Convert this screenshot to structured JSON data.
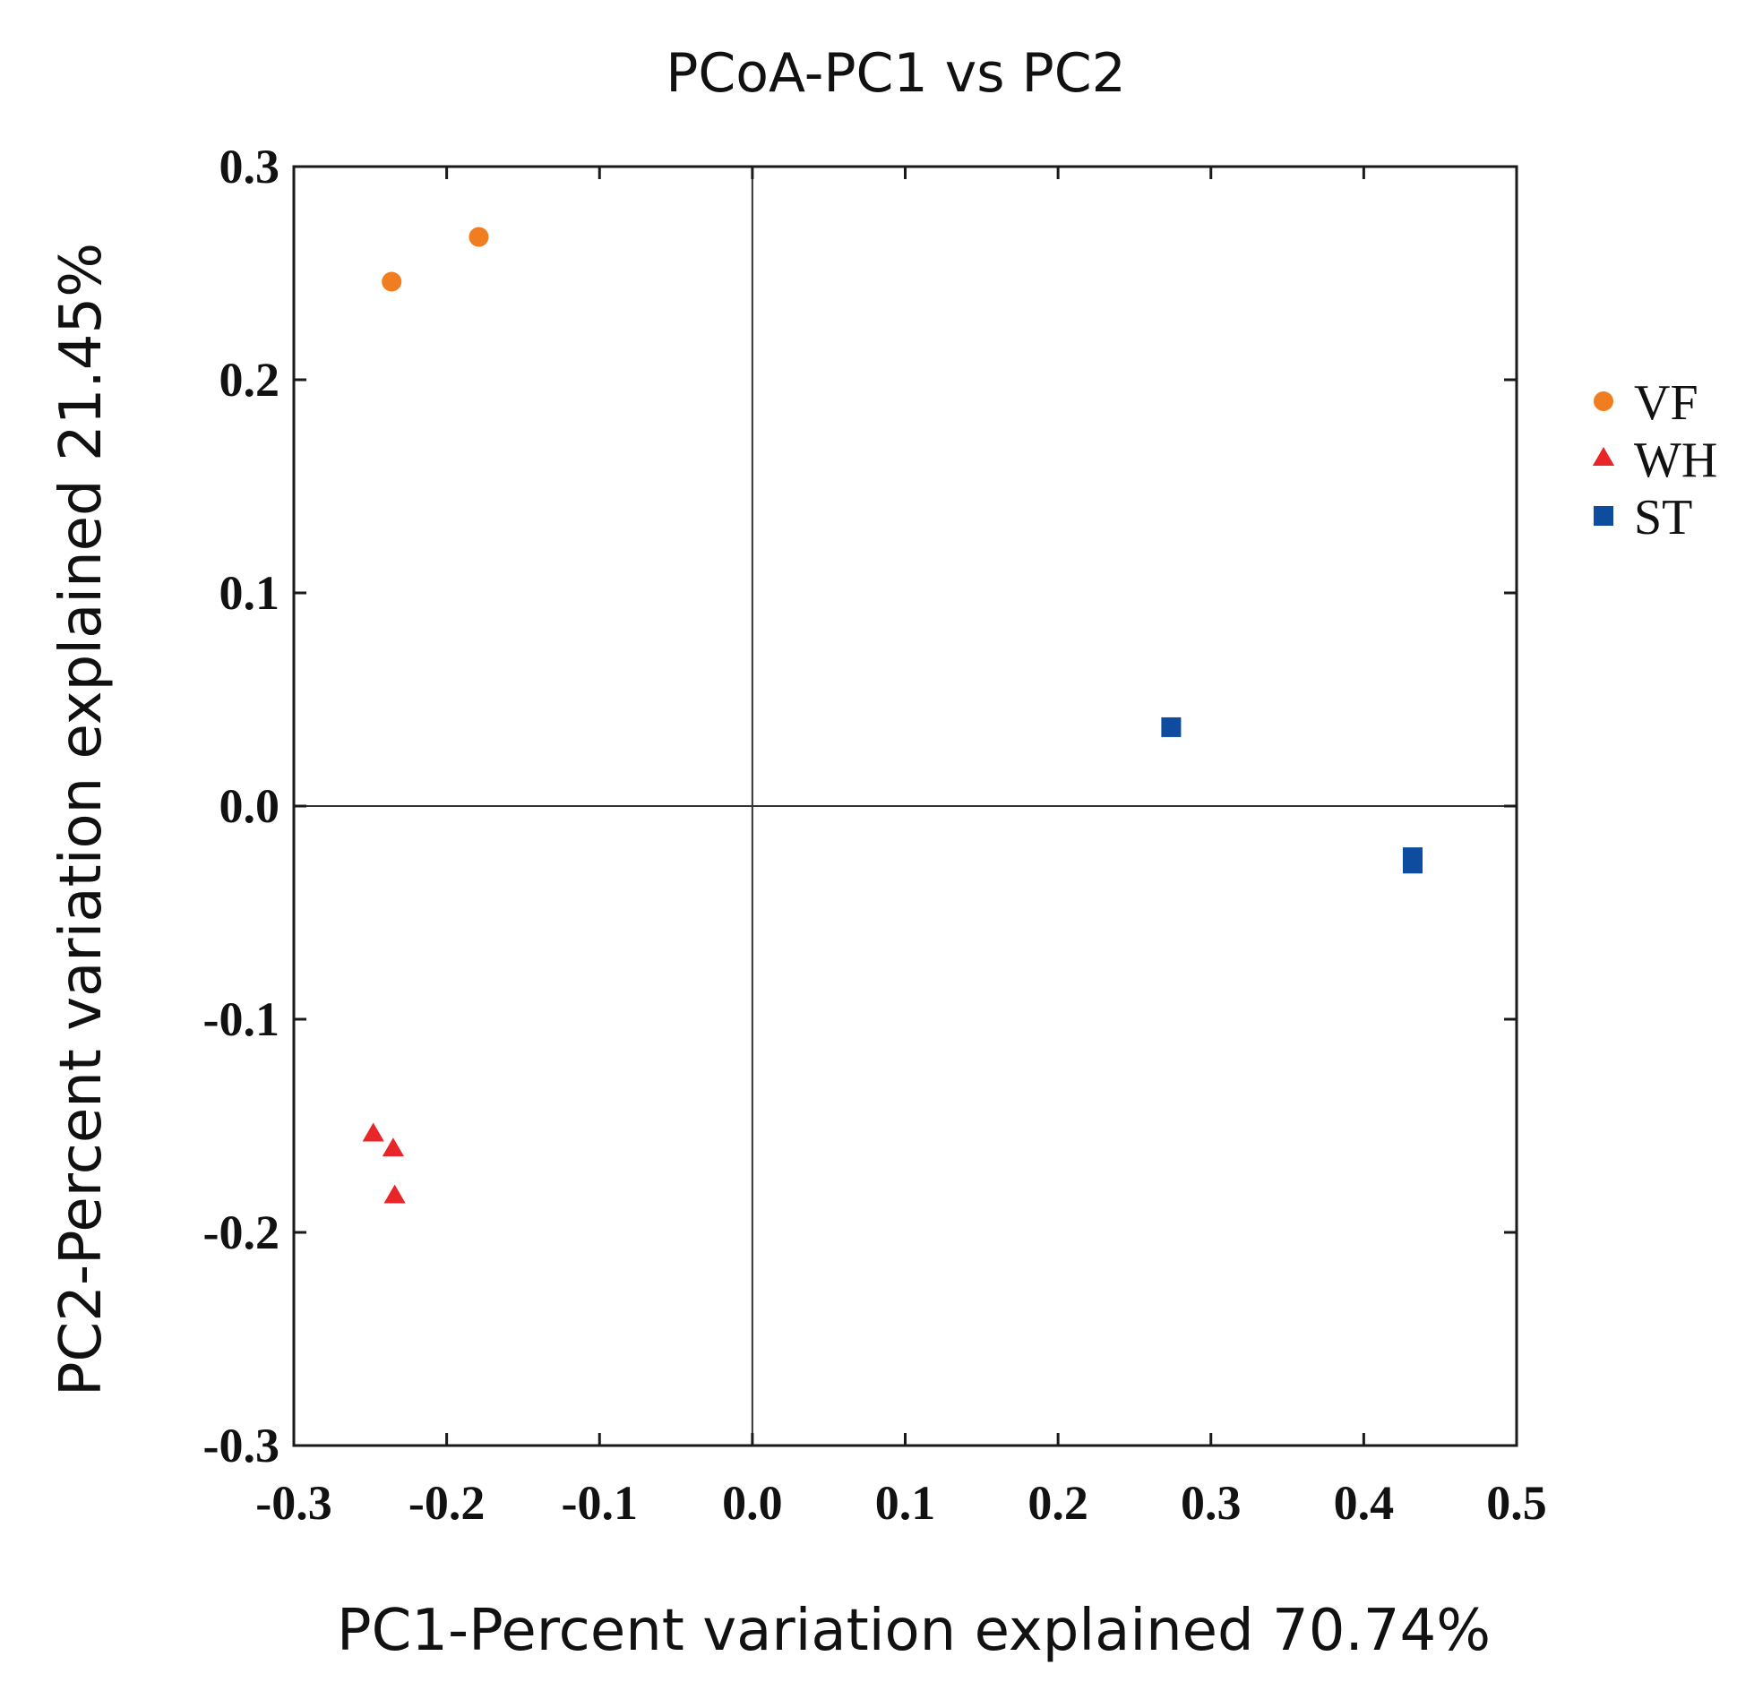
{
  "chart_data": {
    "type": "scatter",
    "title": "PCoA-PC1 vs PC2",
    "xlabel": "PC1-Percent variation explained 70.74%",
    "ylabel": "PC2-Percent variation explained 21.45%",
    "xlim": [
      -0.3,
      0.5
    ],
    "ylim": [
      -0.3,
      0.3
    ],
    "xticks": [
      -0.3,
      -0.2,
      -0.1,
      0.0,
      0.1,
      0.2,
      0.3,
      0.4,
      0.5
    ],
    "yticks": [
      0.3,
      0.2,
      0.1,
      0.0,
      -0.1,
      -0.2,
      -0.3
    ],
    "xtick_labels": [
      "-0.3",
      "-0.2",
      "-0.1",
      "0.0",
      "0.1",
      "0.2",
      "0.3",
      "0.4",
      "0.5"
    ],
    "ytick_labels": [
      "0.3",
      "0.2",
      "0.1",
      "0.0",
      "-0.1",
      "-0.2",
      "-0.3"
    ],
    "reference_lines": {
      "x": 0.0,
      "y": 0.0
    },
    "legend_position": "right",
    "series": [
      {
        "name": "VF",
        "marker": "circle",
        "color": "#F07E20",
        "points": [
          [
            -0.236,
            0.246
          ],
          [
            -0.179,
            0.267
          ]
        ]
      },
      {
        "name": "WH",
        "marker": "triangle",
        "color": "#E8262A",
        "points": [
          [
            -0.248,
            -0.154
          ],
          [
            -0.235,
            -0.161
          ],
          [
            -0.234,
            -0.183
          ]
        ]
      },
      {
        "name": "ST",
        "marker": "square",
        "color": "#0D4C9E",
        "points": [
          [
            0.274,
            0.037
          ],
          [
            0.432,
            -0.024
          ],
          [
            0.432,
            -0.027
          ]
        ]
      }
    ]
  }
}
